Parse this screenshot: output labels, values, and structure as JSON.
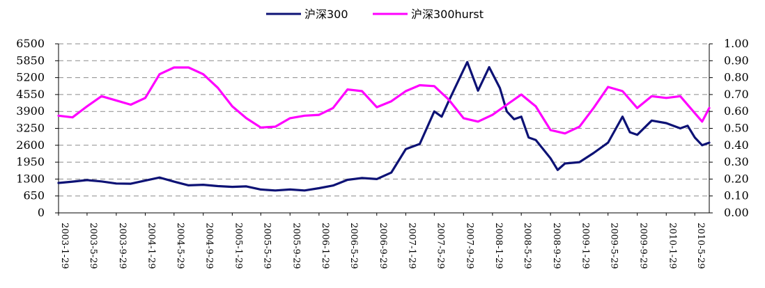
{
  "chart_data": {
    "type": "line",
    "legend_position": "top",
    "grid": "horizontal dashed",
    "series": [
      {
        "name": "沪深300",
        "axis": "left",
        "color": "#0d1275",
        "points": [
          [
            "2003-1-29",
            1150
          ],
          [
            "2003-3-29",
            1200
          ],
          [
            "2003-5-29",
            1260
          ],
          [
            "2003-7-29",
            1210
          ],
          [
            "2003-9-29",
            1130
          ],
          [
            "2003-11-29",
            1120
          ],
          [
            "2004-1-29",
            1240
          ],
          [
            "2004-3-29",
            1360
          ],
          [
            "2004-5-29",
            1200
          ],
          [
            "2004-7-29",
            1060
          ],
          [
            "2004-9-29",
            1080
          ],
          [
            "2004-11-29",
            1030
          ],
          [
            "2005-1-29",
            1000
          ],
          [
            "2005-3-29",
            1020
          ],
          [
            "2005-5-29",
            900
          ],
          [
            "2005-7-29",
            860
          ],
          [
            "2005-9-29",
            900
          ],
          [
            "2005-11-29",
            860
          ],
          [
            "2006-1-29",
            950
          ],
          [
            "2006-3-29",
            1050
          ],
          [
            "2006-5-29",
            1270
          ],
          [
            "2006-7-29",
            1340
          ],
          [
            "2006-9-29",
            1300
          ],
          [
            "2006-11-29",
            1550
          ],
          [
            "2007-1-29",
            2450
          ],
          [
            "2007-3-29",
            2650
          ],
          [
            "2007-5-29",
            3900
          ],
          [
            "2007-6-29",
            3700
          ],
          [
            "2007-7-29",
            4300
          ],
          [
            "2007-9-29",
            5500
          ],
          [
            "2007-10-15",
            5800
          ],
          [
            "2007-11-29",
            4700
          ],
          [
            "2008-1-15",
            5600
          ],
          [
            "2008-2-29",
            4800
          ],
          [
            "2008-3-29",
            3900
          ],
          [
            "2008-4-29",
            3600
          ],
          [
            "2008-5-29",
            3700
          ],
          [
            "2008-6-29",
            2900
          ],
          [
            "2008-7-29",
            2800
          ],
          [
            "2008-9-29",
            2100
          ],
          [
            "2008-10-29",
            1650
          ],
          [
            "2008-11-29",
            1900
          ],
          [
            "2009-1-29",
            1950
          ],
          [
            "2009-3-29",
            2300
          ],
          [
            "2009-5-29",
            2700
          ],
          [
            "2009-7-29",
            3700
          ],
          [
            "2009-8-29",
            3100
          ],
          [
            "2009-9-29",
            3000
          ],
          [
            "2009-11-29",
            3550
          ],
          [
            "2010-1-29",
            3450
          ],
          [
            "2010-3-29",
            3250
          ],
          [
            "2010-4-29",
            3350
          ],
          [
            "2010-5-29",
            2900
          ],
          [
            "2010-6-29",
            2600
          ],
          [
            "2010-7-29",
            2700
          ]
        ]
      },
      {
        "name": "沪深300hurst",
        "axis": "right",
        "color": "#ff00ff",
        "points": [
          [
            "2003-1-29",
            0.575
          ],
          [
            "2003-3-29",
            0.565
          ],
          [
            "2003-5-29",
            0.63
          ],
          [
            "2003-7-29",
            0.69
          ],
          [
            "2003-9-29",
            0.665
          ],
          [
            "2003-11-29",
            0.64
          ],
          [
            "2004-1-29",
            0.68
          ],
          [
            "2004-3-29",
            0.82
          ],
          [
            "2004-5-29",
            0.86
          ],
          [
            "2004-7-29",
            0.86
          ],
          [
            "2004-9-29",
            0.82
          ],
          [
            "2004-11-29",
            0.74
          ],
          [
            "2005-1-29",
            0.63
          ],
          [
            "2005-3-29",
            0.56
          ],
          [
            "2005-5-29",
            0.505
          ],
          [
            "2005-7-29",
            0.51
          ],
          [
            "2005-9-29",
            0.56
          ],
          [
            "2005-11-29",
            0.575
          ],
          [
            "2006-1-29",
            0.58
          ],
          [
            "2006-3-29",
            0.62
          ],
          [
            "2006-5-29",
            0.73
          ],
          [
            "2006-7-29",
            0.72
          ],
          [
            "2006-9-29",
            0.625
          ],
          [
            "2006-11-29",
            0.66
          ],
          [
            "2007-1-29",
            0.72
          ],
          [
            "2007-3-29",
            0.755
          ],
          [
            "2007-5-29",
            0.75
          ],
          [
            "2007-7-29",
            0.67
          ],
          [
            "2007-9-29",
            0.56
          ],
          [
            "2007-11-29",
            0.54
          ],
          [
            "2008-1-29",
            0.58
          ],
          [
            "2008-3-29",
            0.64
          ],
          [
            "2008-5-29",
            0.7
          ],
          [
            "2008-7-29",
            0.63
          ],
          [
            "2008-9-29",
            0.49
          ],
          [
            "2008-11-29",
            0.47
          ],
          [
            "2009-1-29",
            0.51
          ],
          [
            "2009-3-29",
            0.62
          ],
          [
            "2009-5-29",
            0.745
          ],
          [
            "2009-7-29",
            0.72
          ],
          [
            "2009-9-29",
            0.62
          ],
          [
            "2009-11-29",
            0.69
          ],
          [
            "2010-1-29",
            0.68
          ],
          [
            "2010-3-29",
            0.69
          ],
          [
            "2010-5-29",
            0.59
          ],
          [
            "2010-6-29",
            0.54
          ],
          [
            "2010-7-29",
            0.62
          ]
        ]
      }
    ],
    "y_left": {
      "range": [
        0,
        6500
      ],
      "ticks": [
        "0",
        "650",
        "1300",
        "1950",
        "2600",
        "3250",
        "3900",
        "4550",
        "5200",
        "5850",
        "6500"
      ]
    },
    "y_right": {
      "range": [
        0,
        1.0
      ],
      "ticks": [
        "0.00",
        "0.10",
        "0.20",
        "0.30",
        "0.40",
        "0.50",
        "0.60",
        "0.70",
        "0.80",
        "0.90",
        "1.00"
      ]
    },
    "x": {
      "range": [
        "2003-1-29",
        "2010-7-29"
      ],
      "ticks": [
        "2003-1-29",
        "2003-5-29",
        "2003-9-29",
        "2004-1-29",
        "2004-5-29",
        "2004-9-29",
        "2005-1-29",
        "2005-5-29",
        "2005-9-29",
        "2006-1-29",
        "2006-5-29",
        "2006-9-29",
        "2007-1-29",
        "2007-5-29",
        "2007-9-29",
        "2008-1-29",
        "2008-5-29",
        "2008-9-29",
        "2009-1-29",
        "2009-5-29",
        "2009-9-29",
        "2010-1-29",
        "2010-5-29"
      ]
    }
  }
}
